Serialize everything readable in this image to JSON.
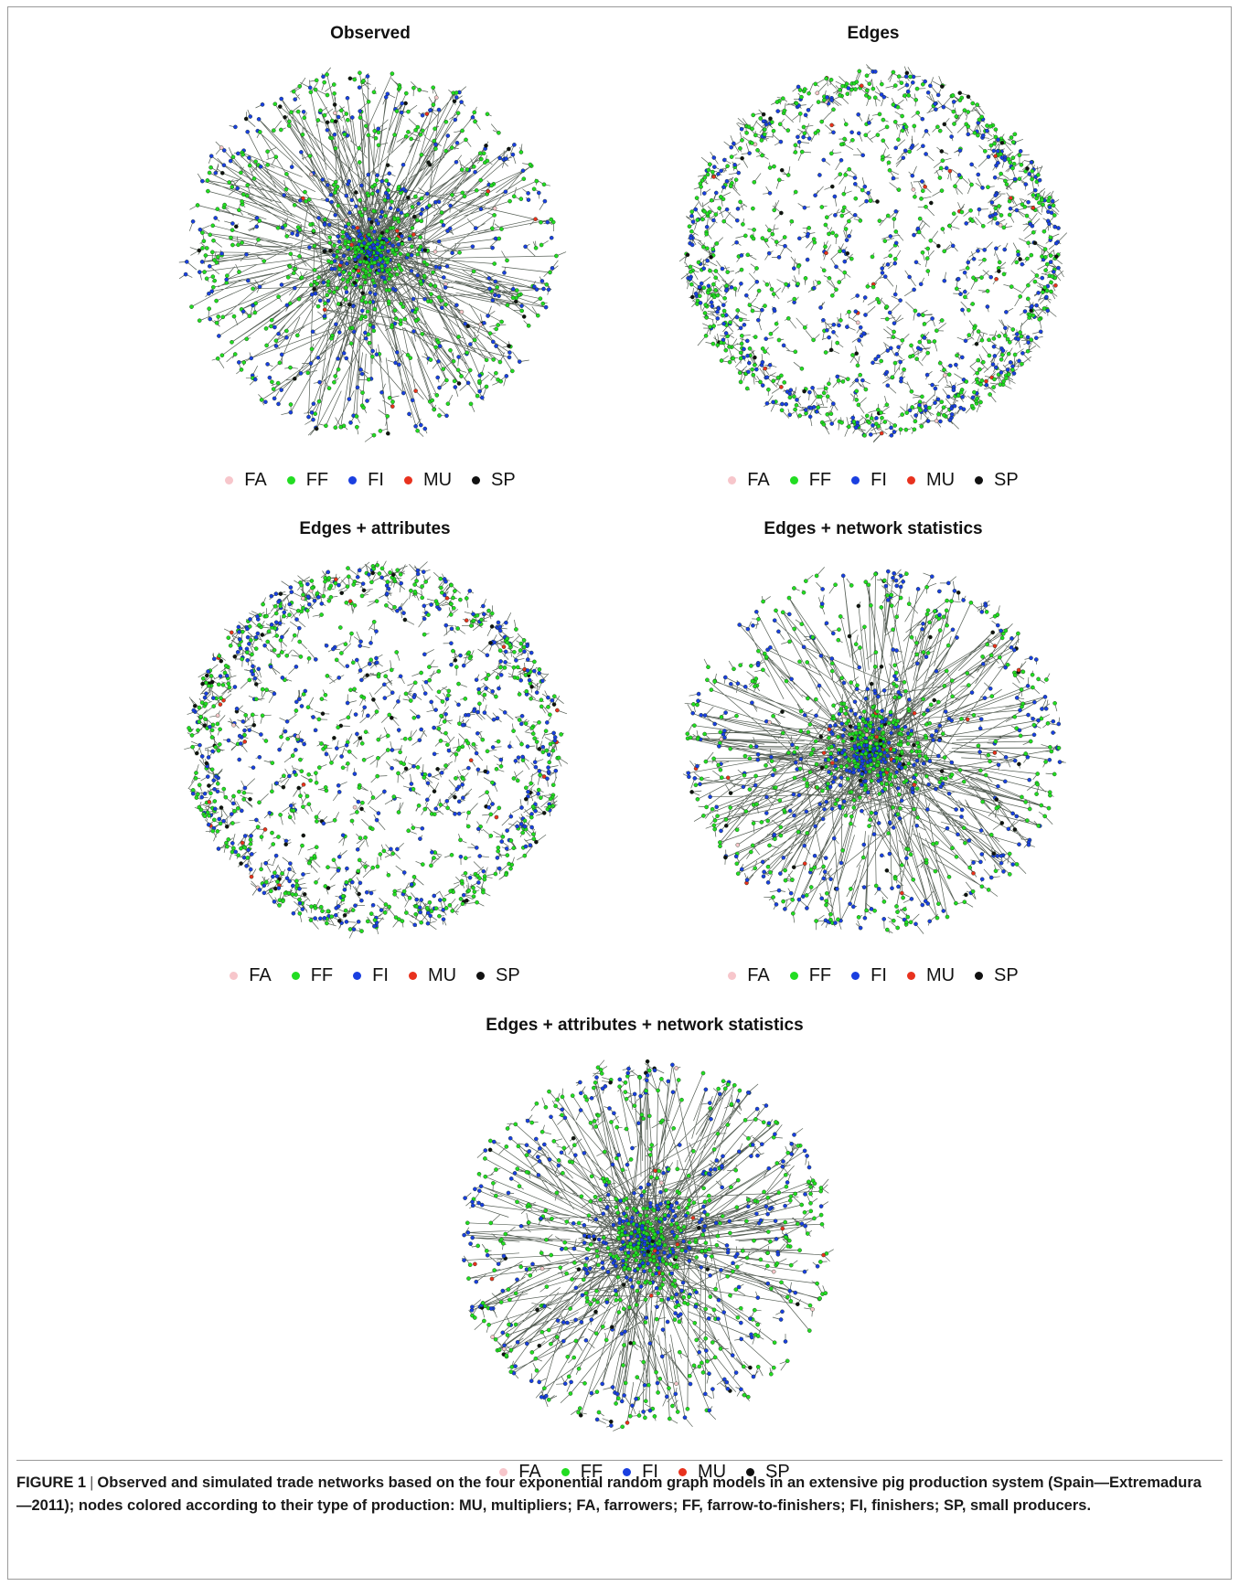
{
  "panels": [
    {
      "title": "Observed",
      "layout": "core"
    },
    {
      "title": "Edges",
      "layout": "uniform"
    },
    {
      "title": "Edges + attributes",
      "layout": "uniform"
    },
    {
      "title": "Edges + network statistics",
      "layout": "core"
    },
    {
      "title": "Edges + attributes + network statistics",
      "layout": "core"
    }
  ],
  "legend": [
    {
      "label": "FA",
      "color": "#f7c6cb"
    },
    {
      "label": "FF",
      "color": "#22dd22"
    },
    {
      "label": "FI",
      "color": "#1a3fe0"
    },
    {
      "label": "MU",
      "color": "#e8321e"
    },
    {
      "label": "SP",
      "color": "#111111"
    }
  ],
  "caption": {
    "figure": "FIGURE 1",
    "text": "Observed and simulated trade networks based on the four exponential random graph models in an extensive pig production system (Spain—Extremadura—2011); nodes colored according to their type of production: MU, multipliers; FA, farrowers; FF, farrow-to-finishers; FI, finishers; SP, small producers."
  }
}
